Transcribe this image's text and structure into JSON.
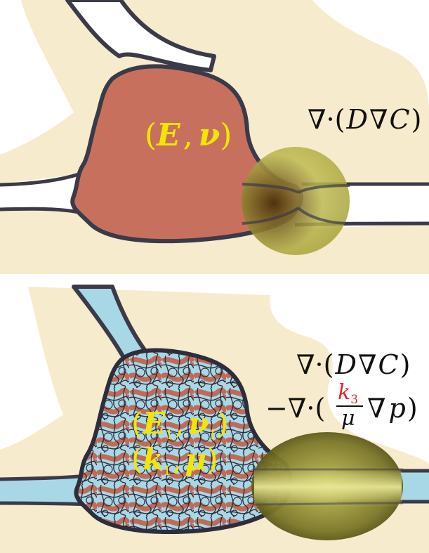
{
  "top_panel": {
    "params": {
      "open": "(",
      "E": "E",
      "comma": ",",
      "nu": "ν",
      "close": ")"
    },
    "eq": {
      "nabla1": "∇",
      "dot": "·",
      "open": "(",
      "D": "D",
      "nabla2": "∇",
      "C": "C",
      "close": ")"
    }
  },
  "bottom_panel": {
    "params1": {
      "open": "(",
      "E": "E",
      "E_sub": "1",
      "comma": ",",
      "nu": "ν",
      "nu_sub": "1",
      "close": ")"
    },
    "params2": {
      "open": "(",
      "k": "k",
      "k_sub": "1",
      "comma": ",",
      "mu": "μ",
      "close": ")"
    },
    "eq_line1": {
      "nabla1": "∇",
      "dot": "·",
      "open": "(",
      "D": "D",
      "nabla2": "∇",
      "C": "C",
      "close": ")"
    },
    "eq_line2": {
      "minus": "−",
      "nabla1": "∇",
      "dot": "·",
      "open": "(",
      "k": "k",
      "k_sub": "3",
      "mu": "μ",
      "nabla2": "∇",
      "p": "p",
      "close": ")"
    }
  },
  "colors": {
    "tissue": "#f6ebcc",
    "cell_body": "#c8705e",
    "outline": "#3a3a48",
    "fluid": "#a8d8e6",
    "parameter_text": "#f2e600",
    "highlight": "#e8242a",
    "sphere": "#bdb84a",
    "ellipsoid": "#6e6a24"
  }
}
